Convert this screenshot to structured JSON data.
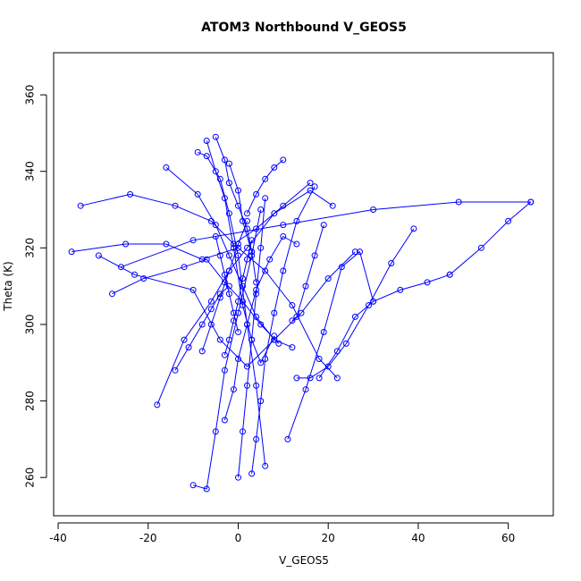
{
  "chart_data": {
    "type": "line",
    "title": "ATOM3 Northbound V_GEOS5",
    "xlabel": "V_GEOS5",
    "ylabel": "Theta (K)",
    "xlim": [
      -41,
      70
    ],
    "ylim": [
      250,
      371
    ],
    "xticks": [
      -40,
      -20,
      0,
      20,
      40,
      60
    ],
    "yticks": [
      260,
      280,
      300,
      320,
      340,
      360
    ],
    "xtick_labels": [
      "-40",
      "-20",
      "0",
      "20",
      "40",
      "60"
    ],
    "ytick_labels": [
      "260",
      "280",
      "300",
      "320",
      "340",
      "360"
    ],
    "grid": false,
    "series_color": "#0000ff",
    "marker": "open-circle",
    "series": [
      {
        "x": [
          -37,
          -25,
          -16,
          -8,
          0,
          6,
          12,
          18,
          22
        ],
        "y": [
          319,
          321,
          321,
          317,
          320,
          314,
          305,
          291,
          286
        ]
      },
      {
        "x": [
          -31,
          -23,
          -10,
          -4,
          2,
          8,
          14,
          20,
          26
        ],
        "y": [
          318,
          313,
          309,
          296,
          289,
          296,
          303,
          312,
          319
        ]
      },
      {
        "x": [
          -35,
          -24,
          -14,
          -6,
          -1,
          4,
          10,
          16
        ],
        "y": [
          331,
          334,
          331,
          327,
          321,
          325,
          331,
          337
        ]
      },
      {
        "x": [
          -28,
          -21,
          -12,
          -7,
          -3,
          1,
          5,
          9
        ],
        "y": [
          308,
          312,
          315,
          317,
          311,
          306,
          300,
          295
        ]
      },
      {
        "x": [
          -7,
          -5,
          -3,
          -1,
          1,
          3,
          5,
          8
        ],
        "y": [
          348,
          340,
          333,
          320,
          305,
          296,
          290,
          297
        ]
      },
      {
        "x": [
          -9,
          -7,
          -4,
          -2,
          0,
          2,
          4,
          6
        ],
        "y": [
          345,
          344,
          338,
          329,
          318,
          300,
          284,
          263
        ]
      },
      {
        "x": [
          -16,
          -9,
          -5,
          -2,
          1,
          4,
          8,
          12
        ],
        "y": [
          341,
          334,
          326,
          318,
          310,
          302,
          296,
          294
        ]
      },
      {
        "x": [
          -18,
          -12,
          -6,
          -2,
          2,
          8,
          16,
          21
        ],
        "y": [
          279,
          296,
          306,
          314,
          320,
          329,
          335,
          331
        ]
      },
      {
        "x": [
          -10,
          -7,
          -5,
          -3,
          0,
          3,
          5
        ],
        "y": [
          258,
          257,
          272,
          288,
          303,
          318,
          330
        ]
      },
      {
        "x": [
          -3,
          -1,
          0,
          2,
          4,
          7,
          10,
          13
        ],
        "y": [
          275,
          283,
          291,
          300,
          309,
          317,
          323,
          321
        ]
      },
      {
        "x": [
          0,
          1,
          2,
          3,
          4,
          5,
          6
        ],
        "y": [
          260,
          272,
          284,
          296,
          308,
          320,
          333
        ]
      },
      {
        "x": [
          3,
          4,
          5,
          6,
          8,
          10,
          13,
          17
        ],
        "y": [
          261,
          270,
          280,
          291,
          303,
          314,
          327,
          336
        ]
      },
      {
        "x": [
          11,
          15,
          19,
          23,
          27,
          30
        ],
        "y": [
          270,
          283,
          298,
          315,
          319,
          306
        ]
      },
      {
        "x": [
          13,
          16,
          20,
          24,
          29,
          34,
          39
        ],
        "y": [
          286,
          286,
          289,
          295,
          305,
          316,
          325
        ]
      },
      {
        "x": [
          18,
          22,
          26,
          30,
          36,
          42,
          47
        ],
        "y": [
          286,
          293,
          302,
          306,
          309,
          311,
          313
        ]
      },
      {
        "x": [
          47,
          54,
          60,
          65
        ],
        "y": [
          313,
          320,
          327,
          332
        ]
      },
      {
        "x": [
          -26,
          -10,
          10,
          30,
          49,
          65
        ],
        "y": [
          315,
          322,
          326,
          330,
          332,
          332
        ]
      },
      {
        "x": [
          -5,
          -3,
          -2,
          0,
          2,
          3
        ],
        "y": [
          349,
          343,
          337,
          331,
          325,
          319
        ]
      },
      {
        "x": [
          -3,
          -2,
          -1,
          0,
          1,
          2,
          3
        ],
        "y": [
          292,
          296,
          301,
          306,
          312,
          317,
          322
        ]
      },
      {
        "x": [
          -14,
          -11,
          -8,
          -6,
          -4,
          -2
        ],
        "y": [
          288,
          294,
          300,
          304,
          308,
          310
        ]
      },
      {
        "x": [
          -5,
          -4,
          -3,
          -2,
          -1,
          0
        ],
        "y": [
          323,
          318,
          313,
          308,
          303,
          298
        ]
      },
      {
        "x": [
          2,
          4,
          6,
          8,
          10
        ],
        "y": [
          329,
          334,
          338,
          341,
          343
        ]
      },
      {
        "x": [
          -8,
          -6,
          -4,
          -2,
          0,
          2
        ],
        "y": [
          293,
          300,
          307,
          314,
          321,
          327
        ]
      },
      {
        "x": [
          12,
          13,
          15,
          17,
          19
        ],
        "y": [
          301,
          302,
          310,
          318,
          326
        ]
      },
      {
        "x": [
          -2,
          0,
          1,
          3,
          4
        ],
        "y": [
          342,
          335,
          327,
          319,
          311
        ]
      }
    ]
  }
}
